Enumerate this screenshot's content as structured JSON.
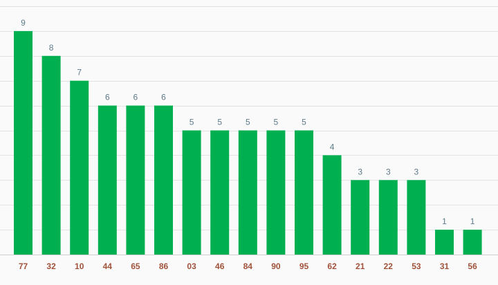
{
  "chart_data": {
    "type": "bar",
    "categories": [
      "77",
      "32",
      "10",
      "44",
      "65",
      "86",
      "03",
      "46",
      "84",
      "90",
      "95",
      "62",
      "21",
      "22",
      "53",
      "31",
      "56"
    ],
    "values": [
      9,
      8,
      7,
      6,
      6,
      6,
      5,
      5,
      5,
      5,
      5,
      4,
      3,
      3,
      3,
      1,
      1
    ],
    "ylim": [
      0,
      10
    ],
    "grid": true,
    "bar_color": "#00b050",
    "value_label_color": "#5c7a8a",
    "category_label_color": "#a0523a"
  }
}
